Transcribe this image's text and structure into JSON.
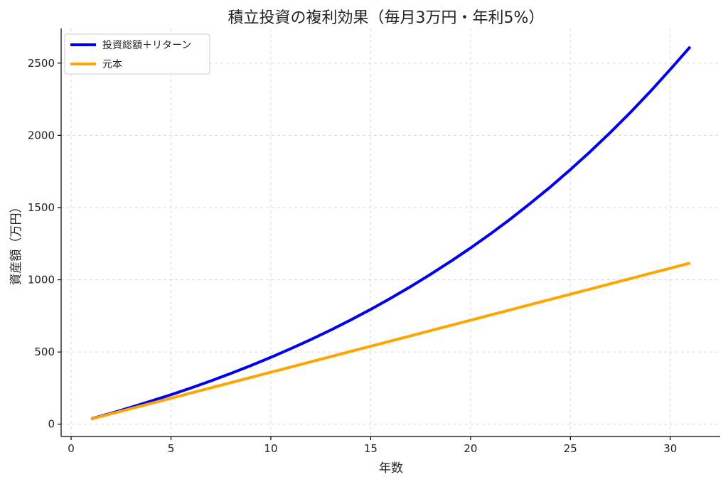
{
  "chart_data": {
    "type": "line",
    "title": "積立投資の複利効果（毎月3万円・年利5%）",
    "xlabel": "年数",
    "ylabel": "資産額（万円）",
    "xlim": [
      -0.5,
      32.5
    ],
    "ylim": [
      -85,
      2740
    ],
    "xticks": [
      0,
      5,
      10,
      15,
      20,
      25,
      30
    ],
    "yticks": [
      0,
      500,
      1000,
      1500,
      2000,
      2500
    ],
    "grid": true,
    "legend_position": "top-left",
    "x": [
      1,
      2,
      3,
      4,
      5,
      6,
      7,
      8,
      9,
      10,
      11,
      12,
      13,
      14,
      15,
      16,
      17,
      18,
      19,
      20,
      21,
      22,
      23,
      24,
      25,
      26,
      27,
      28,
      29,
      30,
      31
    ],
    "series": [
      {
        "name": "投資総額＋リターン",
        "color": "#0000ee",
        "values": [
          37,
          76,
          117,
          160,
          204,
          251,
          300,
          352,
          406,
          463,
          523,
          586,
          652,
          722,
          795,
          872,
          953,
          1038,
          1127,
          1220,
          1318,
          1421,
          1530,
          1643,
          1763,
          1888,
          2020,
          2158,
          2303,
          2456,
          2613
        ]
      },
      {
        "name": "元本",
        "color": "#ffa500",
        "values": [
          36,
          72,
          108,
          144,
          180,
          216,
          252,
          288,
          324,
          360,
          396,
          432,
          468,
          504,
          540,
          576,
          612,
          648,
          684,
          720,
          756,
          792,
          828,
          864,
          900,
          936,
          972,
          1008,
          1044,
          1080,
          1116
        ]
      }
    ]
  }
}
